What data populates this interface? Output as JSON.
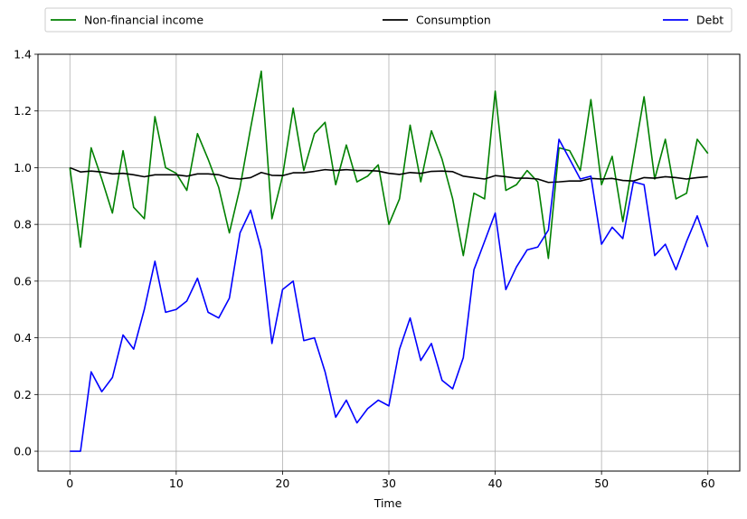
{
  "chart_data": {
    "type": "line",
    "title": "",
    "xlabel": "Time",
    "ylabel": "",
    "xlim": [
      -3,
      63
    ],
    "ylim": [
      -0.07,
      1.4
    ],
    "xticks": [
      0,
      10,
      20,
      30,
      40,
      50,
      60
    ],
    "yticks": [
      0.0,
      0.2,
      0.4,
      0.6,
      0.8,
      1.0,
      1.2,
      1.4
    ],
    "xtick_labels": [
      "0",
      "10",
      "20",
      "30",
      "40",
      "50",
      "60"
    ],
    "ytick_labels": [
      "0.0",
      "0.2",
      "0.4",
      "0.6",
      "0.8",
      "1.0",
      "1.2",
      "1.4"
    ],
    "grid": true,
    "legend_position": "top, above plot",
    "x": [
      0,
      1,
      2,
      3,
      4,
      5,
      6,
      7,
      8,
      9,
      10,
      11,
      12,
      13,
      14,
      15,
      16,
      17,
      18,
      19,
      20,
      21,
      22,
      23,
      24,
      25,
      26,
      27,
      28,
      29,
      30,
      31,
      32,
      33,
      34,
      35,
      36,
      37,
      38,
      39,
      40,
      41,
      42,
      43,
      44,
      45,
      46,
      47,
      48,
      49,
      50,
      51,
      52,
      53,
      54,
      55,
      56,
      57,
      58,
      59,
      60
    ],
    "series": [
      {
        "name": "Non-financial income",
        "color": "#008000",
        "values": [
          1.0,
          0.72,
          1.07,
          0.96,
          0.84,
          1.06,
          0.86,
          0.82,
          1.18,
          1.0,
          0.98,
          0.92,
          1.12,
          1.03,
          0.93,
          0.77,
          0.93,
          1.14,
          1.34,
          0.82,
          0.97,
          1.21,
          0.99,
          1.12,
          1.16,
          0.94,
          1.08,
          0.95,
          0.97,
          1.01,
          0.8,
          0.89,
          1.15,
          0.95,
          1.13,
          1.03,
          0.89,
          0.69,
          0.91,
          0.89,
          1.27,
          0.92,
          0.94,
          0.99,
          0.95,
          0.68,
          1.07,
          1.06,
          0.99,
          1.24,
          0.94,
          1.04,
          0.81,
          1.03,
          1.25,
          0.96,
          1.1,
          0.89,
          0.91,
          1.1,
          1.05
        ]
      },
      {
        "name": "Consumption",
        "color": "#000000",
        "values": [
          1.0,
          0.985,
          0.988,
          0.985,
          0.978,
          0.98,
          0.975,
          0.968,
          0.975,
          0.975,
          0.975,
          0.97,
          0.978,
          0.978,
          0.975,
          0.963,
          0.96,
          0.965,
          0.983,
          0.973,
          0.972,
          0.982,
          0.982,
          0.987,
          0.993,
          0.99,
          0.993,
          0.99,
          0.99,
          0.988,
          0.98,
          0.976,
          0.983,
          0.98,
          0.987,
          0.988,
          0.986,
          0.97,
          0.965,
          0.96,
          0.972,
          0.968,
          0.963,
          0.963,
          0.96,
          0.948,
          0.95,
          0.953,
          0.953,
          0.962,
          0.96,
          0.962,
          0.955,
          0.953,
          0.965,
          0.963,
          0.968,
          0.965,
          0.96,
          0.965,
          0.968
        ]
      },
      {
        "name": "Debt",
        "color": "#0000ff",
        "values": [
          0.0,
          0.0,
          0.28,
          0.21,
          0.26,
          0.41,
          0.36,
          0.5,
          0.67,
          0.49,
          0.5,
          0.53,
          0.61,
          0.49,
          0.47,
          0.54,
          0.77,
          0.85,
          0.71,
          0.38,
          0.57,
          0.6,
          0.39,
          0.4,
          0.28,
          0.12,
          0.18,
          0.1,
          0.15,
          0.18,
          0.16,
          0.36,
          0.47,
          0.32,
          0.38,
          0.25,
          0.22,
          0.33,
          0.64,
          0.74,
          0.84,
          0.57,
          0.65,
          0.71,
          0.72,
          0.78,
          1.1,
          1.03,
          0.96,
          0.97,
          0.73,
          0.79,
          0.75,
          0.95,
          0.94,
          0.69,
          0.73,
          0.64,
          0.74,
          0.83,
          0.72
        ]
      }
    ]
  }
}
